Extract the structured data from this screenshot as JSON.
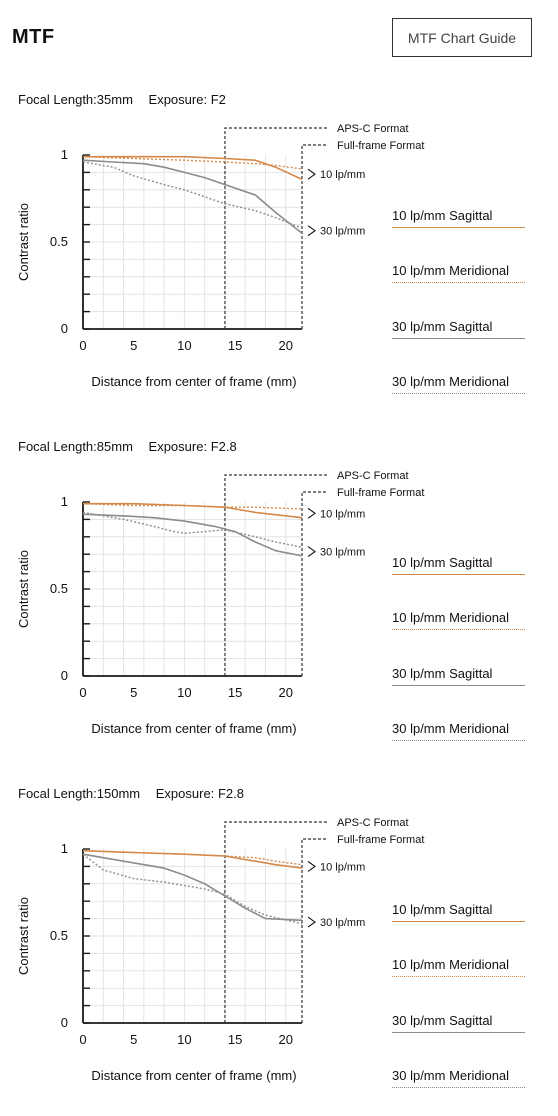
{
  "page": {
    "title": "MTF",
    "guide_button_label": "MTF Chart Guide"
  },
  "colors": {
    "sagittal_10": "#d4894a",
    "meridional_10": "#d4894a",
    "sagittal_30": "#8c8c8c",
    "meridional_30": "#8c8c8c",
    "grid": "#e3e3e3",
    "axis": "#1a1a1a",
    "annotation": "#333333"
  },
  "legend_labels": [
    "10 lp/mm Sagittal",
    "10 lp/mm Meridional",
    "30 lp/mm Sagittal",
    "30 lp/mm Meridional"
  ],
  "charts": [
    {
      "focal_label": "Focal Length:",
      "focal_value": "35mm",
      "exposure_label": "Exposure:",
      "exposure_value": "F2"
    },
    {
      "focal_label": "Focal Length:",
      "focal_value": "85mm",
      "exposure_label": "Exposure:",
      "exposure_value": "F2.8"
    },
    {
      "focal_label": "Focal Length:",
      "focal_value": "150mm",
      "exposure_label": "Exposure:",
      "exposure_value": "F2.8"
    }
  ],
  "chart_data": [
    {
      "type": "line",
      "title": "",
      "xlabel": "Distance from center of frame (mm)",
      "ylabel": "Contrast ratio",
      "xlim": [
        0,
        21.6
      ],
      "ylim": [
        0,
        1
      ],
      "xticks": [
        "0",
        "5",
        "10",
        "15",
        "20"
      ],
      "yticks": [
        "0",
        "0.5",
        "1"
      ],
      "annotations": {
        "apsc": "APS-C Format",
        "apsc_x": 14,
        "fullframe": "Full-frame Format",
        "fullframe_x": 21.6,
        "lp10": "10 lp/mm",
        "lp30": "30 lp/mm"
      },
      "series": [
        {
          "name": "10 lp/mm Sagittal",
          "x": [
            0,
            5,
            10,
            14,
            17,
            19,
            21.6
          ],
          "values": [
            0.99,
            0.99,
            0.99,
            0.98,
            0.97,
            0.93,
            0.86
          ]
        },
        {
          "name": "10 lp/mm Meridional",
          "x": [
            0,
            5,
            10,
            14,
            17,
            19,
            21.6
          ],
          "values": [
            0.99,
            0.98,
            0.97,
            0.96,
            0.95,
            0.94,
            0.92
          ]
        },
        {
          "name": "30 lp/mm Sagittal",
          "x": [
            0,
            3,
            6,
            8,
            10,
            12,
            14,
            17,
            19,
            21.6
          ],
          "values": [
            0.97,
            0.96,
            0.95,
            0.93,
            0.9,
            0.87,
            0.83,
            0.77,
            0.67,
            0.55
          ]
        },
        {
          "name": "30 lp/mm Meridional",
          "x": [
            0,
            3,
            5,
            8,
            10,
            12,
            14,
            17,
            19,
            21.6
          ],
          "values": [
            0.96,
            0.93,
            0.88,
            0.83,
            0.8,
            0.76,
            0.72,
            0.68,
            0.64,
            0.58
          ]
        }
      ]
    },
    {
      "type": "line",
      "title": "",
      "xlabel": "Distance from center of frame (mm)",
      "ylabel": "Contrast ratio",
      "xlim": [
        0,
        21.6
      ],
      "ylim": [
        0,
        1
      ],
      "xticks": [
        "0",
        "5",
        "10",
        "15",
        "20"
      ],
      "yticks": [
        "0",
        "0.5",
        "1"
      ],
      "annotations": {
        "apsc": "APS-C Format",
        "apsc_x": 14,
        "fullframe": "Full-frame Format",
        "fullframe_x": 21.6,
        "lp10": "10 lp/mm",
        "lp30": "30 lp/mm"
      },
      "series": [
        {
          "name": "10 lp/mm Sagittal",
          "x": [
            0,
            5,
            10,
            14,
            17,
            21.6
          ],
          "values": [
            0.99,
            0.99,
            0.98,
            0.97,
            0.94,
            0.91
          ]
        },
        {
          "name": "10 lp/mm Meridional",
          "x": [
            0,
            5,
            10,
            14,
            17,
            21.6
          ],
          "values": [
            0.99,
            0.98,
            0.98,
            0.97,
            0.97,
            0.96
          ]
        },
        {
          "name": "30 lp/mm Sagittal",
          "x": [
            0,
            4,
            7,
            10,
            13,
            15,
            17,
            19,
            21.6
          ],
          "values": [
            0.93,
            0.92,
            0.91,
            0.89,
            0.86,
            0.83,
            0.77,
            0.72,
            0.69
          ]
        },
        {
          "name": "30 lp/mm Meridional",
          "x": [
            0,
            4,
            7,
            9,
            10,
            12,
            14,
            17,
            19,
            21.6
          ],
          "values": [
            0.94,
            0.9,
            0.86,
            0.83,
            0.82,
            0.83,
            0.84,
            0.8,
            0.77,
            0.74
          ]
        }
      ]
    },
    {
      "type": "line",
      "title": "",
      "xlabel": "Distance from center of frame (mm)",
      "ylabel": "Contrast ratio",
      "xlim": [
        0,
        21.6
      ],
      "ylim": [
        0,
        1
      ],
      "xticks": [
        "0",
        "5",
        "10",
        "15",
        "20"
      ],
      "yticks": [
        "0",
        "0.5",
        "1"
      ],
      "annotations": {
        "apsc": "APS-C Format",
        "apsc_x": 14,
        "fullframe": "Full-frame Format",
        "fullframe_x": 21.6,
        "lp10": "10 lp/mm",
        "lp30": "30 lp/mm"
      },
      "series": [
        {
          "name": "10 lp/mm Sagittal",
          "x": [
            0,
            5,
            10,
            14,
            17,
            19,
            21.6
          ],
          "values": [
            0.99,
            0.98,
            0.97,
            0.96,
            0.93,
            0.91,
            0.89
          ]
        },
        {
          "name": "10 lp/mm Meridional",
          "x": [
            0,
            5,
            10,
            14,
            17,
            19,
            21.6
          ],
          "values": [
            0.99,
            0.98,
            0.97,
            0.96,
            0.95,
            0.93,
            0.91
          ]
        },
        {
          "name": "30 lp/mm Sagittal",
          "x": [
            0,
            3,
            5,
            8,
            10,
            12,
            14,
            16,
            18,
            21.6
          ],
          "values": [
            0.97,
            0.94,
            0.92,
            0.89,
            0.85,
            0.8,
            0.73,
            0.66,
            0.6,
            0.59
          ]
        },
        {
          "name": "30 lp/mm Meridional",
          "x": [
            0,
            2,
            5,
            8,
            10,
            12,
            14,
            16,
            18,
            21.6
          ],
          "values": [
            0.97,
            0.88,
            0.83,
            0.81,
            0.79,
            0.77,
            0.74,
            0.67,
            0.62,
            0.57
          ]
        }
      ]
    }
  ]
}
